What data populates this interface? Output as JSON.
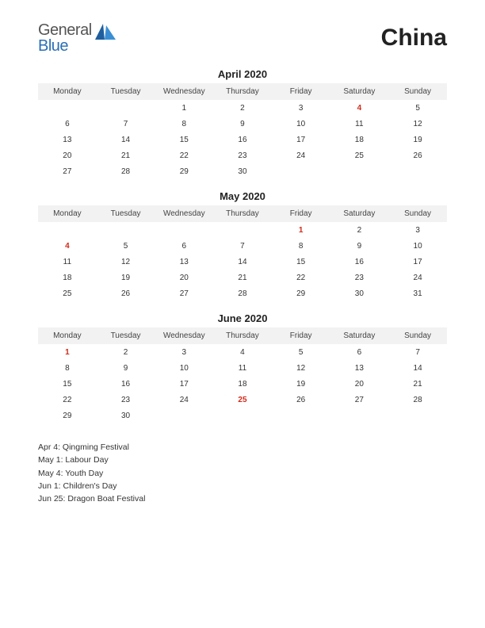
{
  "logo": {
    "line1": "General",
    "line2": "Blue"
  },
  "country": "China",
  "day_headers": [
    "Monday",
    "Tuesday",
    "Wednesday",
    "Thursday",
    "Friday",
    "Saturday",
    "Sunday"
  ],
  "months": [
    {
      "title": "April 2020",
      "weeks": [
        [
          null,
          null,
          1,
          2,
          3,
          {
            "d": 4,
            "h": true
          },
          5
        ],
        [
          6,
          7,
          8,
          9,
          10,
          11,
          12
        ],
        [
          13,
          14,
          15,
          16,
          17,
          18,
          19
        ],
        [
          20,
          21,
          22,
          23,
          24,
          25,
          26
        ],
        [
          27,
          28,
          29,
          30,
          null,
          null,
          null
        ]
      ]
    },
    {
      "title": "May 2020",
      "weeks": [
        [
          null,
          null,
          null,
          null,
          {
            "d": 1,
            "h": true
          },
          2,
          3
        ],
        [
          {
            "d": 4,
            "h": true
          },
          5,
          6,
          7,
          8,
          9,
          10
        ],
        [
          11,
          12,
          13,
          14,
          15,
          16,
          17
        ],
        [
          18,
          19,
          20,
          21,
          22,
          23,
          24
        ],
        [
          25,
          26,
          27,
          28,
          29,
          30,
          31
        ]
      ]
    },
    {
      "title": "June 2020",
      "weeks": [
        [
          {
            "d": 1,
            "h": true
          },
          2,
          3,
          4,
          5,
          6,
          7
        ],
        [
          8,
          9,
          10,
          11,
          12,
          13,
          14
        ],
        [
          15,
          16,
          17,
          18,
          19,
          20,
          21
        ],
        [
          22,
          23,
          24,
          {
            "d": 25,
            "h": true
          },
          26,
          27,
          28
        ],
        [
          29,
          30,
          null,
          null,
          null,
          null,
          null
        ]
      ]
    }
  ],
  "holidays": [
    "Apr 4: Qingming Festival",
    "May 1: Labour Day",
    "May 4: Youth Day",
    "Jun 1: Children's Day",
    "Jun 25: Dragon Boat Festival"
  ],
  "colors": {
    "holiday": "#d12a1a",
    "header_bg": "#f2f2f2",
    "logo_blue": "#2a6fb5",
    "logo_gray": "#555555"
  }
}
